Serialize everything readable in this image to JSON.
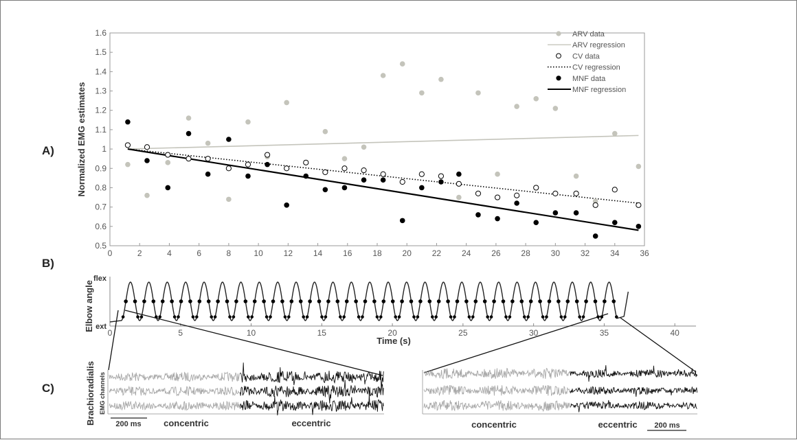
{
  "panels": {
    "a": "A)",
    "b": "B)",
    "c": "C)"
  },
  "chart_data": [
    {
      "type": "scatter",
      "ylabel": "Normalized EMG estimates",
      "xlim": [
        0,
        36
      ],
      "ylim": [
        0.5,
        1.6
      ],
      "xticks": [
        "0",
        "2",
        "4",
        "6",
        "8",
        "10",
        "12",
        "14",
        "16",
        "18",
        "20",
        "22",
        "24",
        "26",
        "28",
        "30",
        "32",
        "34",
        "36"
      ],
      "yticks": [
        "0.5",
        "0.6",
        "0.7",
        "0.8",
        "0.9",
        "1",
        "1.1",
        "1.2",
        "1.3",
        "1.4",
        "1.5",
        "1.6"
      ],
      "legend_position": "top-right",
      "legend": [
        "ARV data",
        "ARV regression",
        "CV data",
        "CV regression",
        "MNF data",
        "MNF regression"
      ],
      "x": [
        1.2,
        2.5,
        3.9,
        5.3,
        6.6,
        8.0,
        9.3,
        10.6,
        11.9,
        13.2,
        14.5,
        15.8,
        17.1,
        18.4,
        19.7,
        21.0,
        22.3,
        23.5,
        24.8,
        26.1,
        27.4,
        28.7,
        30.0,
        31.4,
        32.7,
        34.0,
        35.6
      ],
      "series": [
        {
          "name": "ARV data",
          "marker": "filled-gray",
          "color": "#c4c4bb",
          "values": [
            0.92,
            0.76,
            0.93,
            1.16,
            1.03,
            0.74,
            1.14,
            0.96,
            1.24,
            0.93,
            1.09,
            0.95,
            1.01,
            1.38,
            1.44,
            1.29,
            1.36,
            0.75,
            1.29,
            0.87,
            1.22,
            1.26,
            1.21,
            0.86,
            0.73,
            1.08,
            0.91
          ]
        },
        {
          "name": "ARV regression",
          "style": "line",
          "color": "#c4c4bb",
          "x": [
            1.2,
            35.6
          ],
          "values": [
            1.0,
            1.07
          ]
        },
        {
          "name": "CV data",
          "marker": "open-circle",
          "color": "#000000",
          "values": [
            1.02,
            1.01,
            0.97,
            0.95,
            0.95,
            0.9,
            0.92,
            0.97,
            0.9,
            0.93,
            0.88,
            0.9,
            0.89,
            0.87,
            0.83,
            0.87,
            0.86,
            0.82,
            0.77,
            0.75,
            0.76,
            0.8,
            0.77,
            0.77,
            0.71,
            0.79,
            0.71
          ]
        },
        {
          "name": "CV regression",
          "style": "dotted",
          "color": "#000000",
          "x": [
            1.2,
            35.6
          ],
          "values": [
            1.0,
            0.72
          ]
        },
        {
          "name": "MNF data",
          "marker": "filled-black",
          "color": "#000000",
          "values": [
            1.14,
            0.94,
            0.8,
            1.08,
            0.87,
            1.05,
            0.86,
            0.92,
            0.71,
            0.86,
            0.79,
            0.8,
            0.84,
            0.84,
            0.63,
            0.8,
            0.83,
            0.87,
            0.66,
            0.64,
            0.72,
            0.62,
            0.67,
            0.67,
            0.55,
            0.62,
            0.6
          ]
        },
        {
          "name": "MNF regression",
          "style": "line",
          "color": "#000000",
          "x": [
            1.2,
            35.6
          ],
          "values": [
            1.0,
            0.58
          ]
        }
      ]
    },
    {
      "type": "line",
      "ylabel": "Elbow angle",
      "xlabel": "Time (s)",
      "xlim": [
        0,
        41.5
      ],
      "xticks": [
        "0",
        "5",
        "10",
        "15",
        "20",
        "25",
        "30",
        "35",
        "40"
      ],
      "ytick_labels": [
        "flex",
        "ext"
      ],
      "cycles": 27,
      "signal_duration": 36
    },
    {
      "type": "other",
      "ylabel": "Brachioradialis",
      "channel_label": "EMG channels",
      "channels": 3,
      "left": {
        "scale_label": "200 ms",
        "phase_1": "concentric",
        "phase_2": "eccentric"
      },
      "right": {
        "scale_label": "200 ms",
        "phase_1": "concentric",
        "phase_2": "eccentric"
      }
    }
  ]
}
